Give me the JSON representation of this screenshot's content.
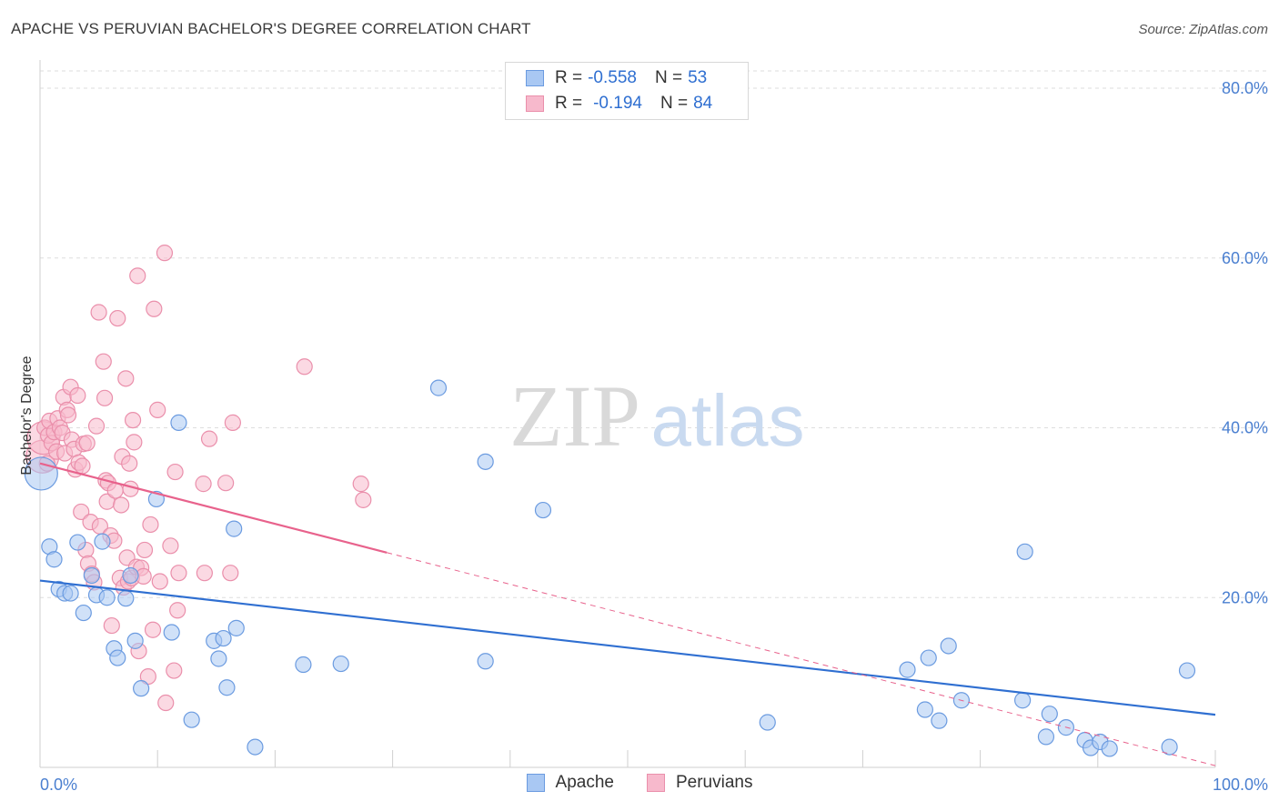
{
  "header": {
    "title": "APACHE VS PERUVIAN BACHELOR'S DEGREE CORRELATION CHART",
    "source": "Source: ZipAtlas.com"
  },
  "legend": {
    "rows": [
      {
        "r_label": "R =",
        "r_value": "-0.558",
        "n_label": "N =",
        "n_value": "53"
      },
      {
        "r_label": "R =",
        "r_value": "-0.194",
        "n_label": "N =",
        "n_value": "84"
      }
    ],
    "bottom": [
      "Apache",
      "Peruvians"
    ]
  },
  "watermark": {
    "zip": "ZIP",
    "atlas": "atlas"
  },
  "colors": {
    "apache_fill": "#a9c8f3",
    "apache_stroke": "#6b9be0",
    "apache_line": "#2f6fd1",
    "peru_fill": "#f7b9cc",
    "peru_stroke": "#ea8fab",
    "peru_line": "#e8628c",
    "tick_text": "#4a7fd0",
    "grid": "#dedede"
  },
  "chart_data": {
    "type": "scatter",
    "title": "APACHE VS PERUVIAN BACHELOR'S DEGREE CORRELATION CHART",
    "xlabel": "",
    "ylabel": "Bachelor's Degree",
    "xlim": [
      0,
      100
    ],
    "ylim": [
      0,
      84
    ],
    "x_tick_labels": [
      "0.0%",
      "100.0%"
    ],
    "y_ticks": [
      20,
      40,
      60,
      80
    ],
    "y_tick_labels": [
      "20.0%",
      "40.0%",
      "60.0%",
      "80.0%"
    ],
    "series": [
      {
        "name": "Apache",
        "r": -0.558,
        "n": 53,
        "trend": {
          "x0": 0,
          "y0": 22.0,
          "x1": 100,
          "y1": 6.2,
          "dashed_to": null
        },
        "points": [
          [
            0.1,
            34.6,
            "large"
          ],
          [
            0.8,
            26.0
          ],
          [
            1.2,
            24.5
          ],
          [
            1.6,
            21.0
          ],
          [
            2.1,
            20.5
          ],
          [
            2.6,
            20.5
          ],
          [
            3.2,
            26.5
          ],
          [
            3.7,
            18.2
          ],
          [
            4.4,
            22.6
          ],
          [
            4.8,
            20.3
          ],
          [
            5.3,
            26.6
          ],
          [
            5.7,
            20.0
          ],
          [
            6.3,
            14.0
          ],
          [
            6.6,
            12.9
          ],
          [
            7.3,
            19.9
          ],
          [
            7.7,
            22.6
          ],
          [
            8.1,
            14.9
          ],
          [
            8.6,
            9.3
          ],
          [
            9.9,
            31.6
          ],
          [
            11.2,
            15.9
          ],
          [
            11.8,
            40.6
          ],
          [
            12.9,
            5.6
          ],
          [
            14.8,
            14.9
          ],
          [
            15.2,
            12.8
          ],
          [
            15.6,
            15.2
          ],
          [
            15.9,
            9.4
          ],
          [
            16.5,
            28.1
          ],
          [
            16.7,
            16.4
          ],
          [
            18.3,
            2.4
          ],
          [
            22.4,
            12.1
          ],
          [
            25.6,
            12.2
          ],
          [
            33.9,
            44.7
          ],
          [
            37.9,
            36.0
          ],
          [
            37.9,
            12.5
          ],
          [
            42.8,
            30.3
          ],
          [
            61.9,
            5.3
          ],
          [
            73.8,
            11.5
          ],
          [
            75.3,
            6.8
          ],
          [
            75.6,
            12.9
          ],
          [
            76.5,
            5.5
          ],
          [
            77.3,
            14.3
          ],
          [
            78.4,
            7.9
          ],
          [
            83.6,
            7.9
          ],
          [
            83.8,
            25.4
          ],
          [
            85.6,
            3.6
          ],
          [
            85.9,
            6.3
          ],
          [
            87.3,
            4.7
          ],
          [
            88.9,
            3.2
          ],
          [
            89.4,
            2.3
          ],
          [
            90.2,
            3.0
          ],
          [
            91.0,
            2.2
          ],
          [
            96.1,
            2.4
          ],
          [
            97.6,
            11.4
          ]
        ]
      },
      {
        "name": "Peruvians",
        "r": -0.194,
        "n": 84,
        "trend": {
          "x0": 0,
          "y0": 35.8,
          "x1": 29.5,
          "y1": 25.3,
          "dashed_to": {
            "x": 100,
            "y": 0.2
          }
        },
        "points": [
          [
            0.2,
            36.6,
            "large"
          ],
          [
            0.3,
            38.8,
            "large"
          ],
          [
            0.4,
            40.0
          ],
          [
            0.6,
            35.8
          ],
          [
            0.7,
            39.1
          ],
          [
            0.8,
            40.8
          ],
          [
            1.0,
            38.2
          ],
          [
            1.2,
            39.5
          ],
          [
            1.4,
            37.2
          ],
          [
            1.5,
            41.1
          ],
          [
            1.7,
            40.0
          ],
          [
            1.9,
            39.4
          ],
          [
            2.0,
            43.6
          ],
          [
            2.1,
            37.0
          ],
          [
            2.3,
            42.1
          ],
          [
            2.4,
            41.5
          ],
          [
            2.6,
            44.8
          ],
          [
            2.7,
            38.6
          ],
          [
            2.9,
            37.5
          ],
          [
            3.0,
            35.1
          ],
          [
            3.2,
            43.8
          ],
          [
            3.3,
            35.9
          ],
          [
            3.5,
            30.1
          ],
          [
            3.6,
            35.5
          ],
          [
            3.7,
            38.1
          ],
          [
            3.9,
            25.6
          ],
          [
            4.0,
            38.2
          ],
          [
            4.1,
            24.0
          ],
          [
            4.3,
            28.9
          ],
          [
            4.4,
            22.8
          ],
          [
            4.6,
            21.8
          ],
          [
            4.8,
            40.2
          ],
          [
            5.0,
            53.6
          ],
          [
            5.1,
            28.4
          ],
          [
            5.4,
            47.8
          ],
          [
            5.5,
            43.5
          ],
          [
            5.6,
            33.8
          ],
          [
            5.7,
            31.3
          ],
          [
            5.8,
            33.5
          ],
          [
            6.0,
            27.3
          ],
          [
            6.1,
            16.7
          ],
          [
            6.3,
            26.7
          ],
          [
            6.4,
            32.6
          ],
          [
            6.6,
            52.9
          ],
          [
            6.8,
            22.3
          ],
          [
            6.9,
            30.9
          ],
          [
            7.0,
            36.6
          ],
          [
            7.1,
            21.2
          ],
          [
            7.3,
            45.8
          ],
          [
            7.4,
            24.7
          ],
          [
            7.5,
            21.9
          ],
          [
            7.6,
            35.8
          ],
          [
            7.7,
            32.8
          ],
          [
            7.8,
            22.3
          ],
          [
            7.9,
            40.9
          ],
          [
            8.0,
            38.3
          ],
          [
            8.2,
            23.6
          ],
          [
            8.3,
            57.9
          ],
          [
            8.4,
            13.7
          ],
          [
            8.6,
            23.5
          ],
          [
            8.9,
            25.6
          ],
          [
            9.2,
            10.7
          ],
          [
            9.4,
            28.6
          ],
          [
            9.6,
            16.2
          ],
          [
            9.7,
            54.0
          ],
          [
            10.0,
            42.1
          ],
          [
            10.2,
            21.9
          ],
          [
            10.6,
            60.6
          ],
          [
            10.7,
            7.6
          ],
          [
            11.1,
            26.1
          ],
          [
            11.4,
            11.4
          ],
          [
            11.5,
            34.8
          ],
          [
            11.7,
            18.5
          ],
          [
            11.8,
            22.9
          ],
          [
            13.9,
            33.4
          ],
          [
            14.0,
            22.9
          ],
          [
            14.4,
            38.7
          ],
          [
            15.8,
            33.5
          ],
          [
            16.2,
            22.9
          ],
          [
            16.4,
            40.6
          ],
          [
            22.5,
            47.2
          ],
          [
            27.3,
            33.4
          ],
          [
            27.5,
            31.5
          ],
          [
            8.8,
            22.5
          ]
        ]
      }
    ]
  }
}
